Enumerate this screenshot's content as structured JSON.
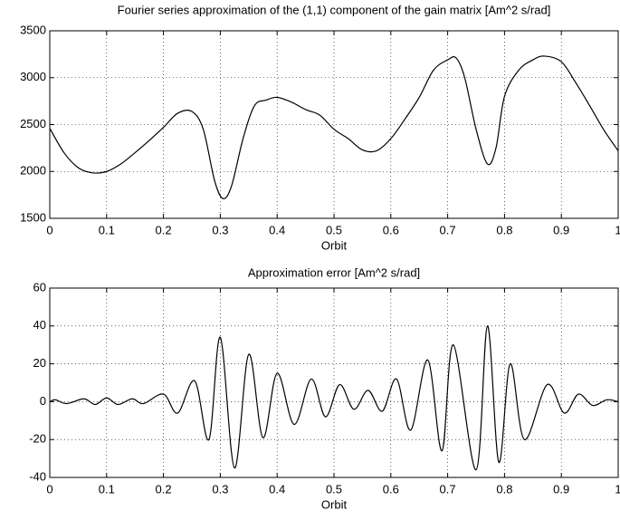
{
  "chart_data": [
    {
      "type": "line",
      "title": "Fourier series approximation of the (1,1) component of the gain matrix [Am^2 s/rad]",
      "x_label": "Orbit",
      "x": [
        0,
        0.025,
        0.05,
        0.075,
        0.1,
        0.125,
        0.15,
        0.175,
        0.2,
        0.225,
        0.25,
        0.27,
        0.29,
        0.305,
        0.32,
        0.34,
        0.36,
        0.38,
        0.4,
        0.425,
        0.45,
        0.475,
        0.5,
        0.525,
        0.55,
        0.575,
        0.6,
        0.625,
        0.65,
        0.675,
        0.7,
        0.715,
        0.73,
        0.75,
        0.77,
        0.785,
        0.8,
        0.825,
        0.85,
        0.87,
        0.9,
        0.925,
        0.95,
        0.975,
        1.0
      ],
      "series": [
        {
          "color": "#000000",
          "values": [
            2460,
            2200,
            2040,
            1985,
            2000,
            2080,
            2200,
            2330,
            2470,
            2620,
            2640,
            2450,
            1900,
            1710,
            1850,
            2350,
            2700,
            2760,
            2790,
            2740,
            2660,
            2600,
            2450,
            2350,
            2230,
            2220,
            2350,
            2560,
            2790,
            3080,
            3190,
            3210,
            3000,
            2450,
            2080,
            2250,
            2800,
            3080,
            3190,
            3230,
            3170,
            2950,
            2700,
            2440,
            2220
          ]
        }
      ],
      "xlim": [
        0,
        1
      ],
      "xticks": [
        0,
        0.1,
        0.2,
        0.3,
        0.4,
        0.5,
        0.6,
        0.7,
        0.8,
        0.9,
        1
      ],
      "ylim": [
        1500,
        3500
      ],
      "yticks": [
        1500,
        2000,
        2500,
        3000,
        3500
      ],
      "grid": true
    },
    {
      "type": "line",
      "title": "Approximation error [Am^2 s/rad]",
      "x_label": "Orbit",
      "x": [
        0,
        0.01,
        0.03,
        0.06,
        0.08,
        0.1,
        0.12,
        0.145,
        0.165,
        0.2,
        0.225,
        0.255,
        0.28,
        0.3,
        0.325,
        0.35,
        0.375,
        0.4,
        0.43,
        0.46,
        0.485,
        0.51,
        0.535,
        0.56,
        0.585,
        0.61,
        0.635,
        0.665,
        0.69,
        0.71,
        0.75,
        0.77,
        0.79,
        0.81,
        0.835,
        0.875,
        0.905,
        0.93,
        0.955,
        0.98,
        1.0
      ],
      "series": [
        {
          "color": "#000000",
          "values": [
            0,
            1,
            -1,
            1.5,
            -1.5,
            2,
            -1.5,
            1.5,
            -1,
            4,
            -6,
            11,
            -20,
            34,
            -35,
            25,
            -19,
            15,
            -12,
            12,
            -8,
            9,
            -4,
            6,
            -5,
            12,
            -15,
            22,
            -26,
            30,
            -36,
            40,
            -32,
            20,
            -20,
            9,
            -6,
            4,
            -2,
            1,
            0
          ]
        }
      ],
      "xlim": [
        0,
        1
      ],
      "xticks": [
        0,
        0.1,
        0.2,
        0.3,
        0.4,
        0.5,
        0.6,
        0.7,
        0.8,
        0.9,
        1
      ],
      "ylim": [
        -40,
        60
      ],
      "yticks": [
        -40,
        -20,
        0,
        20,
        40,
        60
      ],
      "grid": true
    }
  ]
}
